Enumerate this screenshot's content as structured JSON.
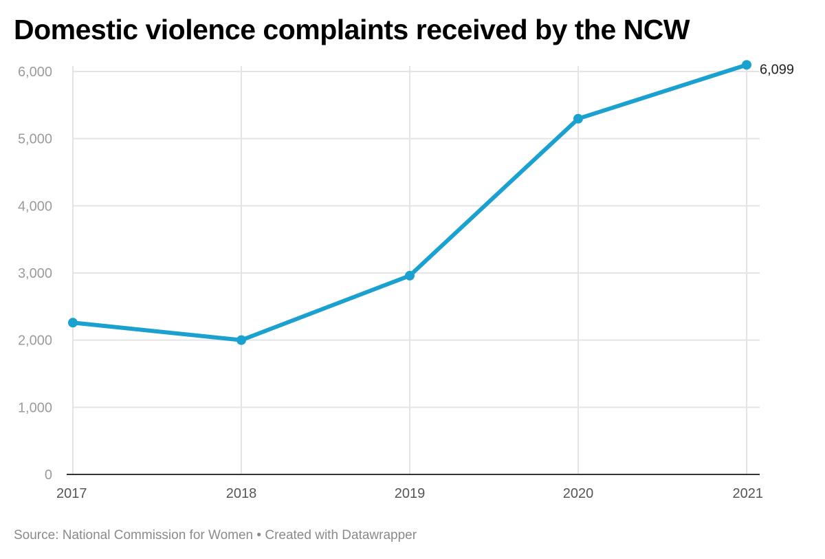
{
  "title": "Domestic violence complaints received by the NCW",
  "footer": {
    "source": "Source: National Commission for Women",
    "separator": "•",
    "credit": "Created with Datawrapper"
  },
  "colors": {
    "line": "#1ba1d0",
    "grid": "#e4e4e4",
    "baseline": "#333333",
    "axis_text": "#9b9b9b"
  },
  "chart_data": {
    "type": "line",
    "x": [
      "2017",
      "2018",
      "2019",
      "2020",
      "2021"
    ],
    "series": [
      {
        "values": [
          2260,
          2000,
          2960,
          5297,
          6099
        ]
      }
    ],
    "ylim": [
      0,
      6000
    ],
    "y_ticks": [
      0,
      1000,
      2000,
      3000,
      4000,
      5000,
      6000
    ],
    "y_tick_labels": [
      "0",
      "1,000",
      "2,000",
      "3,000",
      "4,000",
      "5,000",
      "6,000"
    ],
    "x_tick_labels": [
      "2017",
      "2018",
      "2019",
      "2020",
      "2021"
    ],
    "grid": true,
    "annotations": [
      {
        "x": "2021",
        "label": "6,099"
      }
    ],
    "xlabel": "",
    "ylabel": ""
  }
}
